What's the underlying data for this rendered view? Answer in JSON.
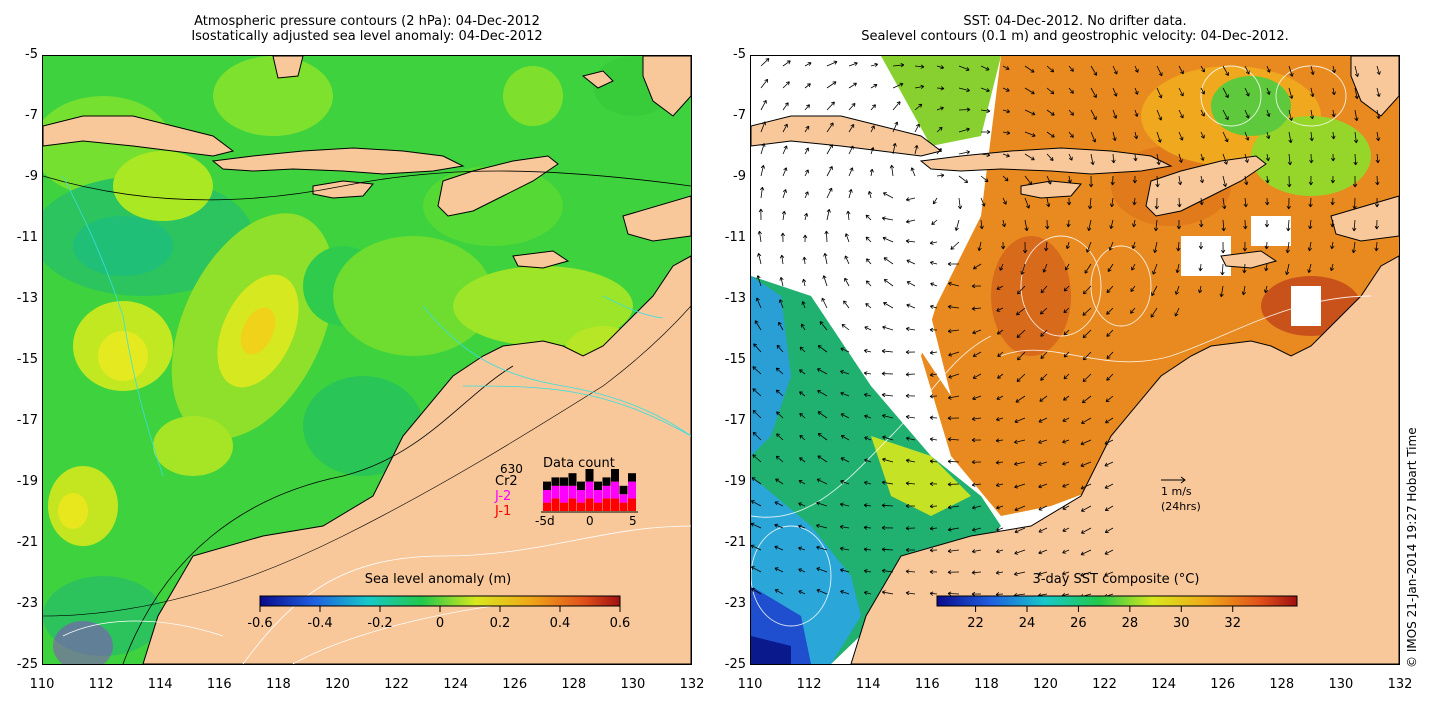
{
  "left_panel": {
    "title_line1": "Atmospheric pressure contours (2 hPa): 04-Dec-2012",
    "title_line2": "Isostatically adjusted sea level anomaly: 04-Dec-2012",
    "y_ticks": [
      "-5",
      "-7",
      "-9",
      "-11",
      "-13",
      "-15",
      "-17",
      "-19",
      "-21",
      "-23",
      "-25"
    ],
    "x_ticks": [
      "110",
      "112",
      "114",
      "116",
      "118",
      "120",
      "122",
      "124",
      "126",
      "128",
      "130",
      "132"
    ],
    "colorbar": {
      "title": "Sea level anomaly (m)",
      "ticks": [
        "-0.6",
        "-0.4",
        "-0.2",
        "0",
        "0.2",
        "0.4",
        "0.6"
      ],
      "range": [
        -0.6,
        0.6
      ]
    },
    "data_count": {
      "title": "Data count",
      "number": "630",
      "labels": [
        "Cr2",
        "J-2",
        "J-1"
      ],
      "label_colors": [
        "#000000",
        "#ff00ff",
        "#ff0000"
      ],
      "x_ticks": [
        "-5d",
        "0",
        "5"
      ],
      "bars": [
        {
          "j1": 2,
          "j2": 3,
          "cr2": 2
        },
        {
          "j1": 3,
          "j2": 3,
          "cr2": 2
        },
        {
          "j1": 2,
          "j2": 4,
          "cr2": 2
        },
        {
          "j1": 3,
          "j2": 3,
          "cr2": 3
        },
        {
          "j1": 2,
          "j2": 3,
          "cr2": 2
        },
        {
          "j1": 3,
          "j2": 4,
          "cr2": 3
        },
        {
          "j1": 2,
          "j2": 3,
          "cr2": 2
        },
        {
          "j1": 3,
          "j2": 3,
          "cr2": 2
        },
        {
          "j1": 3,
          "j2": 4,
          "cr2": 3
        },
        {
          "j1": 2,
          "j2": 2,
          "cr2": 2
        },
        {
          "j1": 3,
          "j2": 4,
          "cr2": 2
        }
      ]
    }
  },
  "right_panel": {
    "title_line1": "SST: 04-Dec-2012. No drifter data.",
    "title_line2": "Sealevel contours (0.1 m) and geostrophic velocity: 04-Dec-2012.",
    "y_ticks": [
      "-5",
      "-7",
      "-9",
      "-11",
      "-13",
      "-15",
      "-17",
      "-19",
      "-21",
      "-23",
      "-25"
    ],
    "x_ticks": [
      "110",
      "112",
      "114",
      "116",
      "118",
      "120",
      "122",
      "124",
      "126",
      "128",
      "130",
      "132"
    ],
    "colorbar": {
      "title": "3-day SST composite (°C)",
      "ticks": [
        "22",
        "24",
        "26",
        "28",
        "30",
        "32"
      ],
      "range": [
        20.5,
        34.5
      ]
    },
    "velocity_key": {
      "line1": "1 m/s",
      "line2": "(24hrs)"
    }
  },
  "credit": "© IMOS 21-Jan-2014 19:27 Hobart Time",
  "colors": {
    "land": "#f8c79a",
    "ocean_green": "#3ed23e",
    "sst_orange": "#e88a1f",
    "coast": "#000000",
    "cyan_contour": "#38e0e0"
  }
}
